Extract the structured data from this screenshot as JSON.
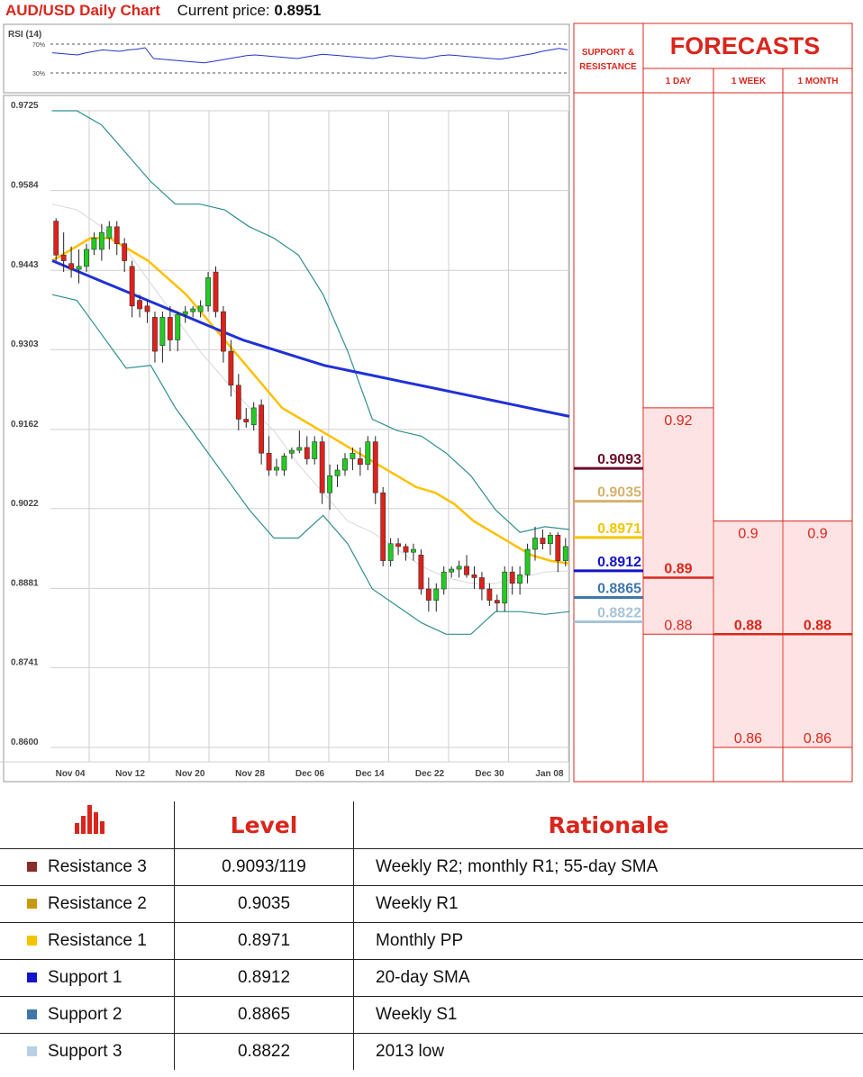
{
  "header": {
    "title": "AUD/USD Daily Chart",
    "price_label": "Current price:",
    "price_value": "0.8951"
  },
  "rsi": {
    "label": "RSI (14)",
    "levels": [
      "70%",
      "30%"
    ],
    "values": [
      58,
      57,
      56,
      55,
      58,
      60,
      62,
      61,
      60,
      62,
      63,
      65,
      50,
      49,
      48,
      47,
      46,
      45,
      44,
      46,
      48,
      50,
      52,
      54,
      55,
      54,
      53,
      52,
      51,
      50,
      52,
      54,
      56,
      55,
      54,
      53,
      52,
      51,
      50,
      52,
      54,
      53,
      52,
      51,
      50,
      52,
      54,
      55,
      54,
      53,
      52,
      51,
      50,
      49,
      51,
      53,
      55,
      57,
      60,
      62,
      64,
      62
    ]
  },
  "chart_data": {
    "type": "candlestick",
    "title": "AUD/USD Daily Chart",
    "ylim": [
      0.86,
      0.9725
    ],
    "y_ticks": [
      "0.9725",
      "0.9584",
      "0.9443",
      "0.9303",
      "0.9162",
      "0.9022",
      "0.8881",
      "0.8741",
      "0.8600"
    ],
    "x_ticks": [
      "Nov 04",
      "Nov 12",
      "Nov 20",
      "Nov 28",
      "Dec 06",
      "Dec 14",
      "Dec 22",
      "Dec 30",
      "Jan 08"
    ],
    "grid": true,
    "candles": [
      [
        0.953,
        0.9535,
        0.946,
        0.947
      ],
      [
        0.947,
        0.951,
        0.944,
        0.946
      ],
      [
        0.9455,
        0.9485,
        0.943,
        0.9445
      ],
      [
        0.9445,
        0.948,
        0.942,
        0.945
      ],
      [
        0.945,
        0.949,
        0.944,
        0.948
      ],
      [
        0.948,
        0.951,
        0.947,
        0.95
      ],
      [
        0.948,
        0.9525,
        0.946,
        0.951
      ],
      [
        0.95,
        0.953,
        0.948,
        0.952
      ],
      [
        0.952,
        0.953,
        0.947,
        0.949
      ],
      [
        0.949,
        0.95,
        0.944,
        0.946
      ],
      [
        0.945,
        0.946,
        0.936,
        0.938
      ],
      [
        0.939,
        0.94,
        0.936,
        0.9375
      ],
      [
        0.938,
        0.939,
        0.935,
        0.937
      ],
      [
        0.936,
        0.937,
        0.928,
        0.93
      ],
      [
        0.931,
        0.937,
        0.928,
        0.936
      ],
      [
        0.936,
        0.938,
        0.93,
        0.932
      ],
      [
        0.932,
        0.937,
        0.93,
        0.9365
      ],
      [
        0.9365,
        0.938,
        0.935,
        0.937
      ],
      [
        0.937,
        0.938,
        0.936,
        0.9375
      ],
      [
        0.937,
        0.939,
        0.936,
        0.938
      ],
      [
        0.938,
        0.944,
        0.937,
        0.943
      ],
      [
        0.944,
        0.945,
        0.936,
        0.937
      ],
      [
        0.937,
        0.938,
        0.928,
        0.93
      ],
      [
        0.93,
        0.932,
        0.922,
        0.924
      ],
      [
        0.924,
        0.926,
        0.916,
        0.918
      ],
      [
        0.918,
        0.92,
        0.9165,
        0.9175
      ],
      [
        0.917,
        0.921,
        0.916,
        0.92
      ],
      [
        0.9205,
        0.9215,
        0.91,
        0.912
      ],
      [
        0.912,
        0.915,
        0.908,
        0.909
      ],
      [
        0.909,
        0.911,
        0.908,
        0.9095
      ],
      [
        0.909,
        0.912,
        0.908,
        0.9115
      ],
      [
        0.912,
        0.913,
        0.911,
        0.9125
      ],
      [
        0.9125,
        0.916,
        0.912,
        0.913
      ],
      [
        0.913,
        0.915,
        0.91,
        0.911
      ],
      [
        0.911,
        0.915,
        0.91,
        0.914
      ],
      [
        0.914,
        0.915,
        0.903,
        0.905
      ],
      [
        0.905,
        0.91,
        0.902,
        0.908
      ],
      [
        0.908,
        0.91,
        0.906,
        0.909
      ],
      [
        0.909,
        0.912,
        0.908,
        0.911
      ],
      [
        0.911,
        0.913,
        0.909,
        0.912
      ],
      [
        0.911,
        0.913,
        0.908,
        0.91
      ],
      [
        0.91,
        0.915,
        0.909,
        0.914
      ],
      [
        0.914,
        0.915,
        0.903,
        0.905
      ],
      [
        0.905,
        0.906,
        0.892,
        0.893
      ],
      [
        0.893,
        0.897,
        0.892,
        0.896
      ],
      [
        0.896,
        0.897,
        0.894,
        0.8955
      ],
      [
        0.8955,
        0.896,
        0.893,
        0.8945
      ],
      [
        0.8945,
        0.896,
        0.893,
        0.895
      ],
      [
        0.894,
        0.895,
        0.887,
        0.888
      ],
      [
        0.888,
        0.89,
        0.884,
        0.886
      ],
      [
        0.886,
        0.889,
        0.884,
        0.888
      ],
      [
        0.888,
        0.892,
        0.887,
        0.891
      ],
      [
        0.891,
        0.892,
        0.89,
        0.8915
      ],
      [
        0.8915,
        0.893,
        0.89,
        0.892
      ],
      [
        0.892,
        0.894,
        0.89,
        0.8905
      ],
      [
        0.8905,
        0.892,
        0.888,
        0.89
      ],
      [
        0.89,
        0.891,
        0.886,
        0.888
      ],
      [
        0.888,
        0.889,
        0.885,
        0.886
      ],
      [
        0.886,
        0.887,
        0.884,
        0.8855
      ],
      [
        0.8855,
        0.892,
        0.884,
        0.891
      ],
      [
        0.891,
        0.892,
        0.887,
        0.889
      ],
      [
        0.889,
        0.892,
        0.887,
        0.8905
      ],
      [
        0.8905,
        0.896,
        0.889,
        0.895
      ],
      [
        0.895,
        0.899,
        0.893,
        0.897
      ],
      [
        0.897,
        0.8985,
        0.895,
        0.896
      ],
      [
        0.896,
        0.898,
        0.894,
        0.8975
      ],
      [
        0.8975,
        0.898,
        0.891,
        0.893
      ],
      [
        0.893,
        0.897,
        0.892,
        0.8955
      ]
    ],
    "series": [
      {
        "values": [
          0.946,
          0.948,
          0.95,
          0.95,
          0.948,
          0.946,
          0.943,
          0.94,
          0.936,
          0.932,
          0.928,
          0.924,
          0.92,
          0.918,
          0.916,
          0.914,
          0.912,
          0.91,
          0.908,
          0.906,
          0.905,
          0.903,
          0.9,
          0.898,
          0.896,
          0.894,
          0.893,
          0.8925
        ]
      },
      {
        "values": [
          0.946,
          0.944,
          0.942,
          0.94,
          0.938,
          0.936,
          0.934,
          0.932,
          0.9305,
          0.929,
          0.9275,
          0.9265,
          0.9255,
          0.9245,
          0.9235,
          0.9225,
          0.9215,
          0.9205,
          0.9195,
          0.9185
        ]
      }
    ],
    "bollinger": {
      "upper": [
        0.9725,
        0.9725,
        0.97,
        0.965,
        0.96,
        0.956,
        0.956,
        0.955,
        0.952,
        0.95,
        0.947,
        0.94,
        0.93,
        0.918,
        0.916,
        0.915,
        0.912,
        0.908,
        0.902,
        0.898,
        0.899,
        0.8985
      ],
      "lower": [
        0.94,
        0.939,
        0.933,
        0.927,
        0.9275,
        0.92,
        0.914,
        0.908,
        0.902,
        0.897,
        0.897,
        0.901,
        0.896,
        0.888,
        0.885,
        0.882,
        0.88,
        0.88,
        0.884,
        0.884,
        0.8835,
        0.884
      ],
      "middle": [
        0.956,
        0.955,
        0.952,
        0.948,
        0.942,
        0.936,
        0.93,
        0.925,
        0.92,
        0.916,
        0.91,
        0.905,
        0.9,
        0.898,
        0.895,
        0.892,
        0.89,
        0.889,
        0.889,
        0.89,
        0.891,
        0.8912
      ]
    }
  },
  "sr_levels": {
    "header": "SUPPORT & RESISTANCE",
    "items": [
      {
        "value": "0.9093",
        "level": 0.9093,
        "color": "#6b0e2a"
      },
      {
        "value": "0.9035",
        "level": 0.9035,
        "color": "#d6b26e"
      },
      {
        "value": "0.8971",
        "level": 0.8971,
        "color": "#f5c400"
      },
      {
        "value": "0.8912",
        "level": 0.8912,
        "color": "#1414c8"
      },
      {
        "value": "0.8865",
        "level": 0.8865,
        "color": "#3f77aa"
      },
      {
        "value": "0.8822",
        "level": 0.8822,
        "color": "#a7c4d6"
      }
    ]
  },
  "forecasts": {
    "title": "FORECASTS",
    "columns": [
      "1 DAY",
      "1 WEEK",
      "1 MONTH"
    ],
    "ranges": [
      {
        "high": 0.92,
        "mid": 0.89,
        "low": 0.88,
        "labels": [
          "0.92",
          "0.89",
          "0.88"
        ]
      },
      {
        "high": 0.9,
        "mid": 0.88,
        "low": 0.86,
        "labels": [
          "0.9",
          "0.88",
          "0.86"
        ]
      },
      {
        "high": 0.9,
        "mid": 0.88,
        "low": 0.86,
        "labels": [
          "0.9",
          "0.88",
          "0.86"
        ]
      }
    ]
  },
  "table": {
    "headers": [
      "Level",
      "Rationale"
    ],
    "rows": [
      {
        "name": "Resistance 3",
        "level": "0.9093/119",
        "rationale": "Weekly R2; monthly R1; 55-day SMA",
        "color": "#8b2b2b"
      },
      {
        "name": "Resistance 2",
        "level": "0.9035",
        "rationale": "Weekly R1",
        "color": "#c89a0a"
      },
      {
        "name": "Resistance 1",
        "level": "0.8971",
        "rationale": "Monthly PP",
        "color": "#f5c400"
      },
      {
        "name": "Support 1",
        "level": "0.8912",
        "rationale": "20-day SMA",
        "color": "#1414c8"
      },
      {
        "name": "Support 2",
        "level": "0.8865",
        "rationale": "Weekly S1",
        "color": "#3f77aa"
      },
      {
        "name": "Support 3",
        "level": "0.8822",
        "rationale": "2013 low",
        "color": "#b8cfe6"
      }
    ]
  }
}
